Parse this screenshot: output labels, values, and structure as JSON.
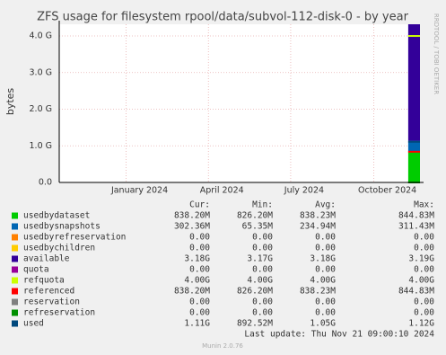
{
  "chart_data": {
    "type": "area",
    "title": "ZFS usage for filesystem rpool/data/subvol-112-disk-0 - by year",
    "ylabel": "bytes",
    "side_label": "RRDTOOL / TOBI OETIKER",
    "x": [
      "2024-11-08",
      "2024-11-21"
    ],
    "xlim": [
      "2023-10-19",
      "2024-11-21"
    ],
    "xticks": [
      {
        "value": "2024-01-01",
        "label": "January 2024"
      },
      {
        "value": "2024-04-01",
        "label": "April 2024"
      },
      {
        "value": "2024-07-01",
        "label": "July 2024"
      },
      {
        "value": "2024-10-01",
        "label": "October 2024"
      }
    ],
    "ylim": [
      0,
      4.32
    ],
    "yticks": [
      {
        "value": 0,
        "label": "0.0"
      },
      {
        "value": 1,
        "label": "1.0 G"
      },
      {
        "value": 2,
        "label": "2.0 G"
      },
      {
        "value": 3,
        "label": "3.0 G"
      },
      {
        "value": 4,
        "label": "4.0 G"
      }
    ],
    "grid": true,
    "series": [
      {
        "name": "usedbydataset",
        "color": "#00cc00",
        "style": "stack",
        "values": [
          0.8382,
          0.8382
        ]
      },
      {
        "name": "usedbysnapshots",
        "color": "#0066b3",
        "style": "stack",
        "values": [
          0.3024,
          0.3024
        ]
      },
      {
        "name": "usedbyrefreservation",
        "color": "#ff8000",
        "style": "stack",
        "values": [
          0,
          0
        ]
      },
      {
        "name": "usedbychildren",
        "color": "#ffcc00",
        "style": "stack",
        "values": [
          0,
          0
        ]
      },
      {
        "name": "available",
        "color": "#330099",
        "style": "stack",
        "values": [
          3.18,
          3.18
        ]
      },
      {
        "name": "quota",
        "color": "#990099",
        "style": "line",
        "values": [
          0,
          0
        ]
      },
      {
        "name": "refquota",
        "color": "#ccff00",
        "style": "line",
        "values": [
          4.0,
          4.0
        ]
      },
      {
        "name": "referenced",
        "color": "#ff0000",
        "style": "line",
        "values": [
          0.8382,
          0.8382
        ]
      },
      {
        "name": "reservation",
        "color": "#808080",
        "style": "line",
        "values": [
          0,
          0
        ]
      },
      {
        "name": "refreservation",
        "color": "#008f00",
        "style": "line",
        "values": [
          0,
          0
        ]
      },
      {
        "name": "used",
        "color": "#00487d",
        "style": "line",
        "values": [
          1.11,
          1.11
        ]
      }
    ]
  },
  "table": {
    "headers": [
      "Cur:",
      "Min:",
      "Avg:",
      "Max:"
    ],
    "rows": [
      [
        "838.20M",
        "826.20M",
        "838.23M",
        "844.83M"
      ],
      [
        "302.36M",
        "65.35M",
        "234.94M",
        "311.43M"
      ],
      [
        "0.00",
        "0.00",
        "0.00",
        "0.00"
      ],
      [
        "0.00",
        "0.00",
        "0.00",
        "0.00"
      ],
      [
        "3.18G",
        "3.17G",
        "3.18G",
        "3.19G"
      ],
      [
        "0.00",
        "0.00",
        "0.00",
        "0.00"
      ],
      [
        "4.00G",
        "4.00G",
        "4.00G",
        "4.00G"
      ],
      [
        "838.20M",
        "826.20M",
        "838.23M",
        "844.83M"
      ],
      [
        "0.00",
        "0.00",
        "0.00",
        "0.00"
      ],
      [
        "0.00",
        "0.00",
        "0.00",
        "0.00"
      ],
      [
        "1.11G",
        "892.52M",
        "1.05G",
        "1.12G"
      ]
    ]
  },
  "footer": {
    "last_update": "Last update: Thu Nov 21 09:00:10 2024",
    "version": "Munin 2.0.76"
  }
}
